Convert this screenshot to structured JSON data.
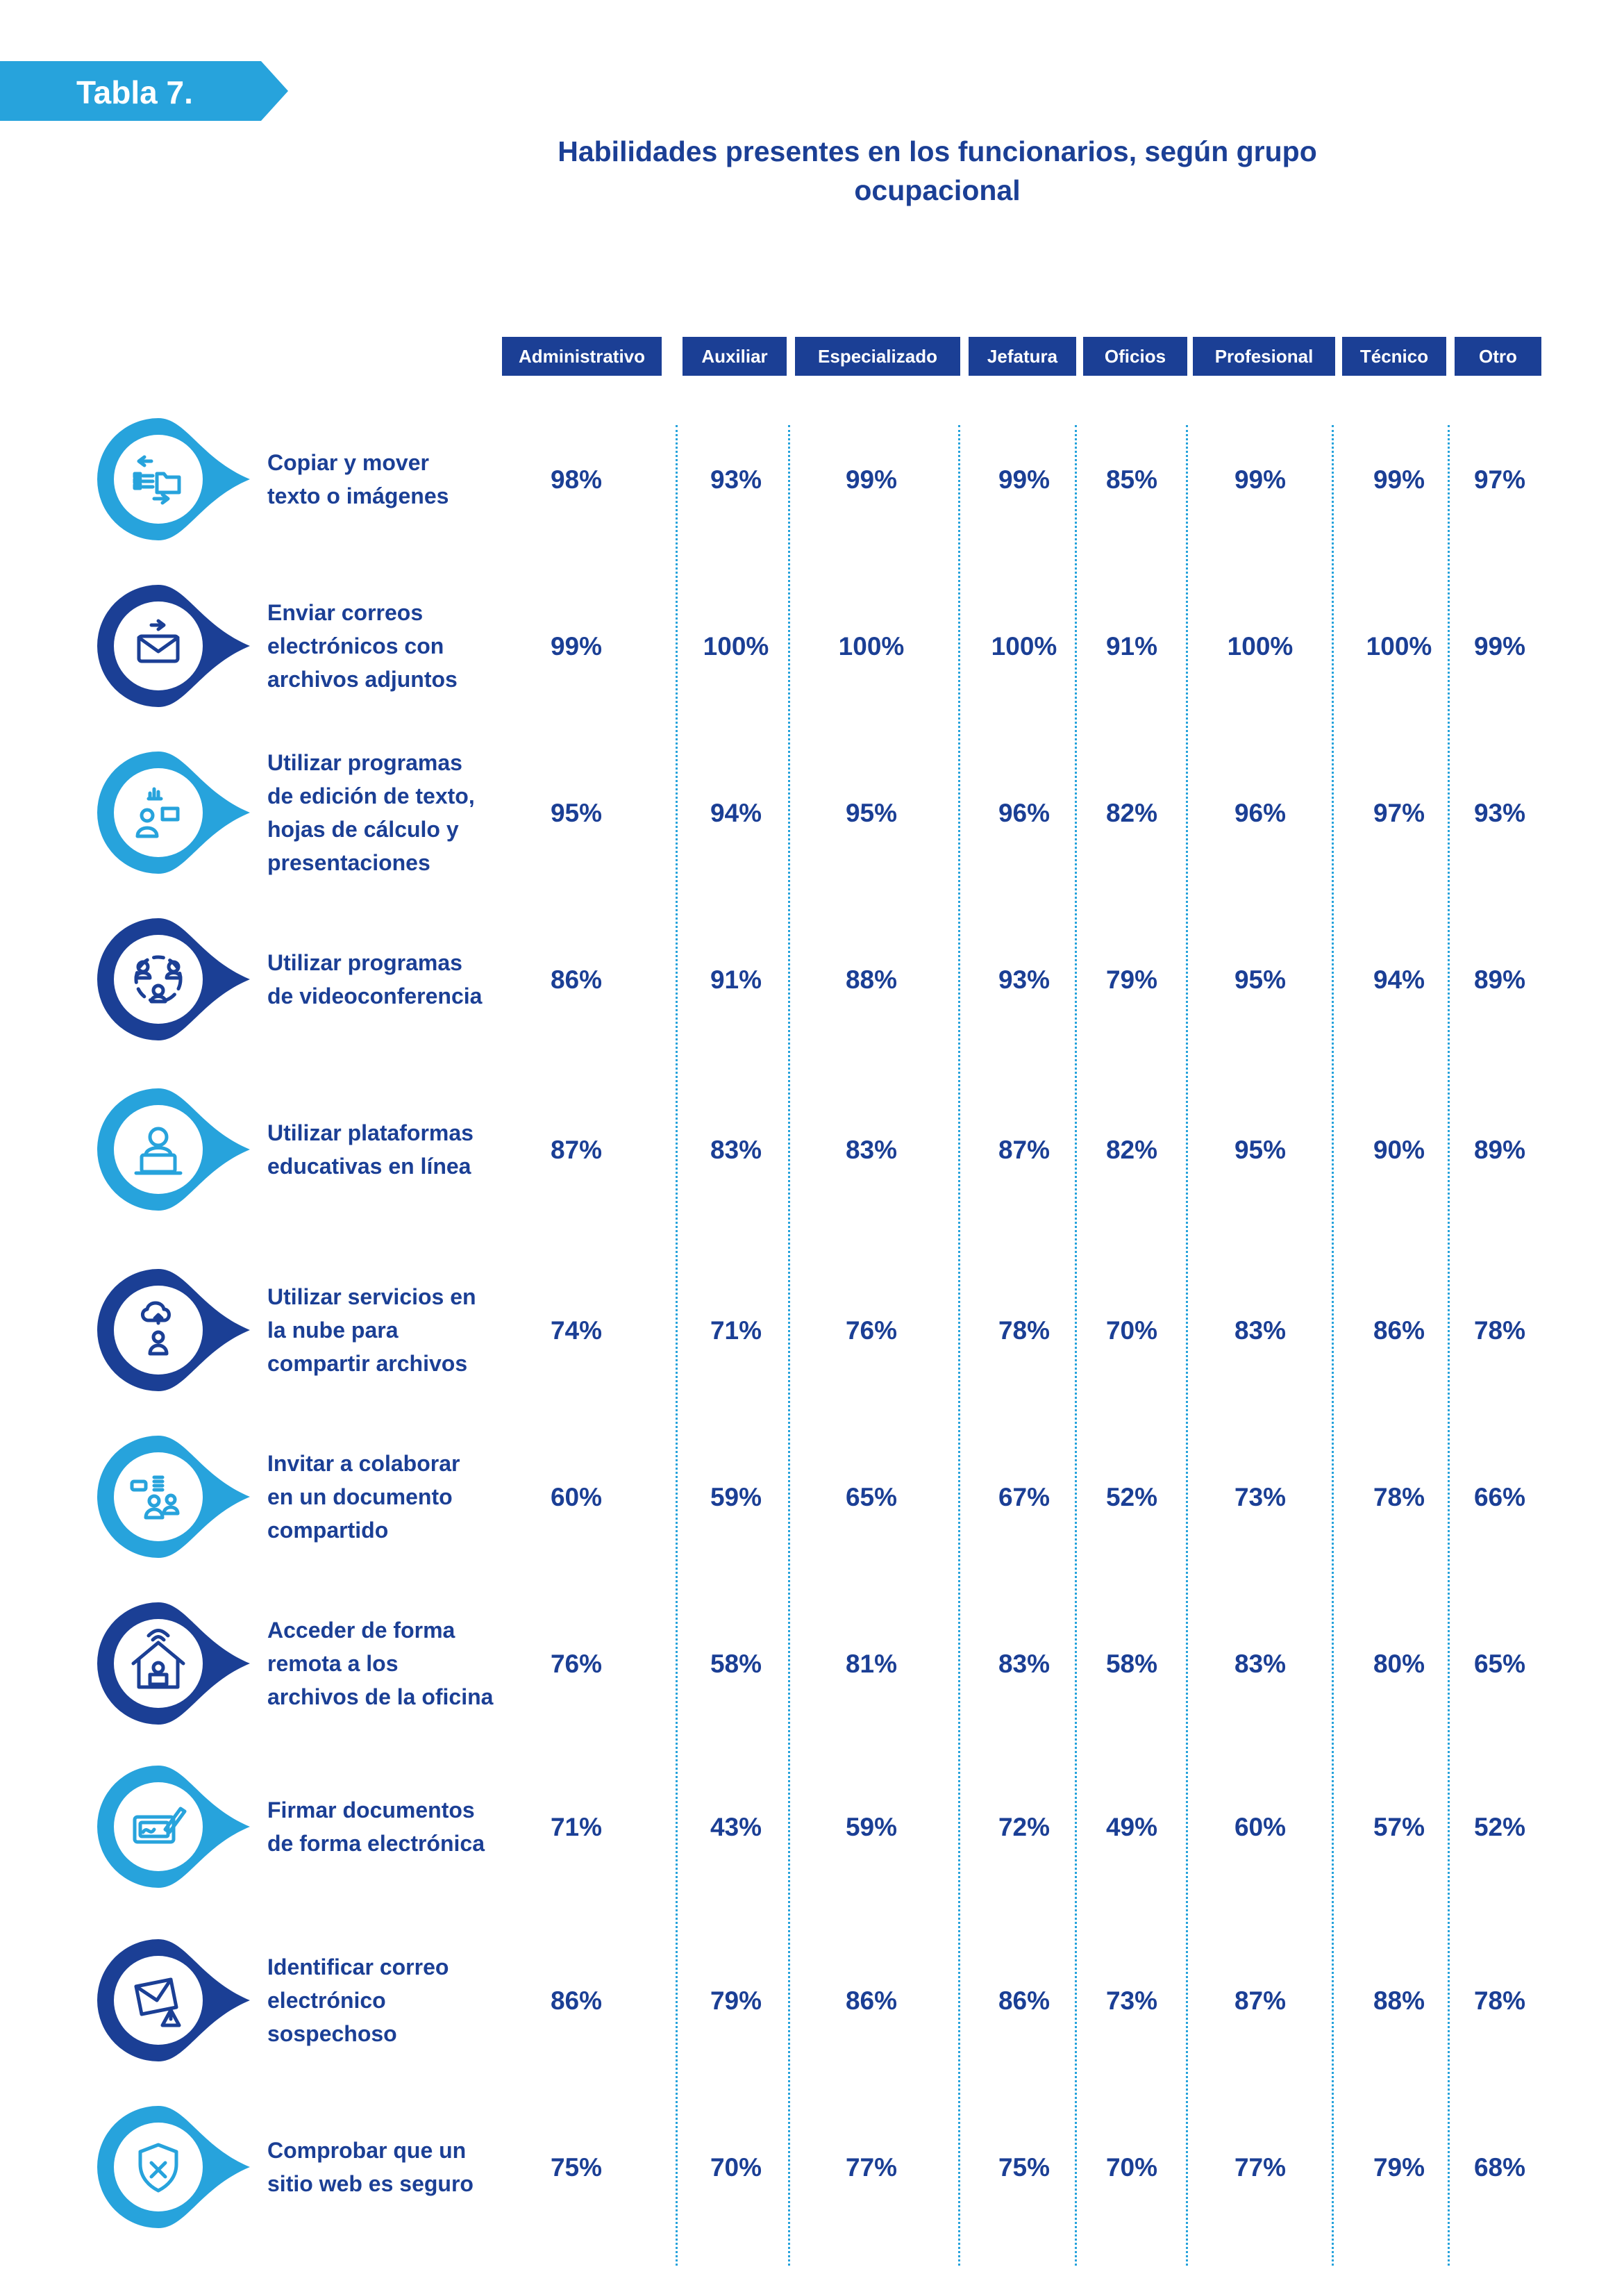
{
  "table_tag": "Tabla 7.",
  "title_line1": "Habilidades presentes en los funcionarios, según grupo",
  "title_line2": "ocupacional",
  "columns": [
    "Administrativo",
    "Auxiliar",
    "Especializado",
    "Jefatura",
    "Oficios",
    "Profesional",
    "Técnico",
    "Otro"
  ],
  "colors": {
    "dark_blue": "#1b3f95",
    "light_blue": "#27a3dc"
  },
  "rows": [
    {
      "icon": "copy-move-icon",
      "theme": "light",
      "label": [
        "Copiar y mover",
        "texto o imágenes"
      ],
      "values": [
        "98%",
        "93%",
        "99%",
        "99%",
        "85%",
        "99%",
        "99%",
        "97%"
      ]
    },
    {
      "icon": "email-attachment-icon",
      "theme": "dark",
      "label": [
        "Enviar correos",
        "electrónicos con",
        "archivos adjuntos"
      ],
      "values": [
        "99%",
        "100%",
        "100%",
        "100%",
        "91%",
        "100%",
        "100%",
        "99%"
      ]
    },
    {
      "icon": "office-software-icon",
      "theme": "light",
      "label": [
        "Utilizar programas",
        "de edición de texto,",
        "hojas de cálculo y",
        "presentaciones"
      ],
      "values": [
        "95%",
        "94%",
        "95%",
        "96%",
        "82%",
        "96%",
        "97%",
        "93%"
      ]
    },
    {
      "icon": "videoconference-icon",
      "theme": "dark",
      "label": [
        "Utilizar programas",
        "de videoconferencia"
      ],
      "values": [
        "86%",
        "91%",
        "88%",
        "93%",
        "79%",
        "95%",
        "94%",
        "89%"
      ]
    },
    {
      "icon": "e-learning-icon",
      "theme": "light",
      "label": [
        "Utilizar plataformas",
        "educativas en línea"
      ],
      "values": [
        "87%",
        "83%",
        "83%",
        "87%",
        "82%",
        "95%",
        "90%",
        "89%"
      ]
    },
    {
      "icon": "cloud-share-icon",
      "theme": "dark",
      "label": [
        "Utilizar servicios en",
        "la nube para",
        "compartir archivos"
      ],
      "values": [
        "74%",
        "71%",
        "76%",
        "78%",
        "70%",
        "83%",
        "86%",
        "78%"
      ]
    },
    {
      "icon": "collaborate-icon",
      "theme": "light",
      "label": [
        "Invitar a colaborar",
        "en un documento",
        "compartido"
      ],
      "values": [
        "60%",
        "59%",
        "65%",
        "67%",
        "52%",
        "73%",
        "78%",
        "66%"
      ]
    },
    {
      "icon": "remote-access-icon",
      "theme": "dark",
      "label": [
        "Acceder de forma",
        "remota a los",
        "archivos de la oficina"
      ],
      "values": [
        "76%",
        "58%",
        "81%",
        "83%",
        "58%",
        "83%",
        "80%",
        "65%"
      ]
    },
    {
      "icon": "e-signature-icon",
      "theme": "light",
      "label": [
        "Firmar documentos",
        "de forma electrónica"
      ],
      "values": [
        "71%",
        "43%",
        "59%",
        "72%",
        "49%",
        "60%",
        "57%",
        "52%"
      ]
    },
    {
      "icon": "suspicious-email-icon",
      "theme": "dark",
      "label": [
        "Identificar correo",
        "electrónico",
        "sospechoso"
      ],
      "values": [
        "86%",
        "79%",
        "86%",
        "86%",
        "73%",
        "87%",
        "88%",
        "78%"
      ]
    },
    {
      "icon": "secure-site-icon",
      "theme": "light",
      "label": [
        "Comprobar que un",
        "sitio web es seguro"
      ],
      "values": [
        "75%",
        "70%",
        "77%",
        "75%",
        "70%",
        "77%",
        "79%",
        "68%"
      ]
    }
  ]
}
